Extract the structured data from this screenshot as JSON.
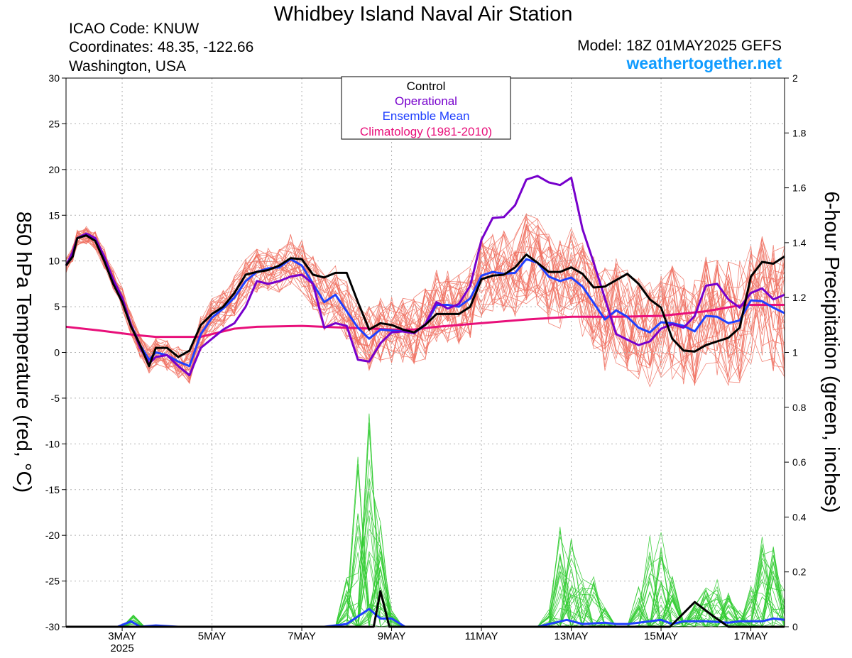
{
  "header": {
    "title": "Whidbey Island Naval Air Station",
    "icao": "ICAO Code: KNUW",
    "coords": "Coordinates: 48.35, -122.66",
    "location": "Washington, USA",
    "model": "Model: 18Z 01MAY2025 GEFS",
    "site": "weathertogether.net"
  },
  "colors": {
    "control": "#000000",
    "operational": "#7700cc",
    "mean": "#1f3fff",
    "climatology": "#e8107a",
    "members_temp": "#f07060",
    "members_precip": "#33cc33",
    "site": "#0f9bff"
  },
  "chart_data": {
    "type": "line",
    "title": "Whidbey Island Naval Air Station",
    "xlabel": "",
    "ylabel": "850 hPa Temperature (red, °C)",
    "y2label": "6-hour Precipitation (green, inches)",
    "ylim": [
      -30,
      30
    ],
    "y2lim": [
      0,
      2
    ],
    "xlim": [
      1.75,
      17.75
    ],
    "x_units": "day of May 2025",
    "yticks": [
      "30",
      "25",
      "20",
      "15",
      "10",
      "5",
      "0",
      "-5",
      "-10",
      "-15",
      "-20",
      "-25",
      "-30"
    ],
    "y2ticks": [
      "2",
      "1.8",
      "1.6",
      "1.4",
      "1.2",
      "1",
      "0.8",
      "0.6",
      "0.4",
      "0.2",
      "0"
    ],
    "xticks": [
      {
        "x": 3,
        "label": "3MAY"
      },
      {
        "x": 5,
        "label": "5MAY"
      },
      {
        "x": 7,
        "label": "7MAY"
      },
      {
        "x": 9,
        "label": "9MAY"
      },
      {
        "x": 11,
        "label": "11MAY"
      },
      {
        "x": 13,
        "label": "13MAY"
      },
      {
        "x": 15,
        "label": "15MAY"
      },
      {
        "x": 17,
        "label": "17MAY"
      }
    ],
    "year_label": "2025",
    "grid": true,
    "legend": {
      "placement": "top-center",
      "entries": [
        "Control",
        "Operational",
        "Ensemble Mean",
        "Climatology (1981-2010)"
      ]
    },
    "temperature": {
      "control": [
        [
          1.75,
          9.5
        ],
        [
          1.9,
          10.5
        ],
        [
          2.0,
          12.5
        ],
        [
          2.2,
          12.8
        ],
        [
          2.4,
          12.2
        ],
        [
          2.6,
          10.0
        ],
        [
          2.8,
          7.5
        ],
        [
          3.0,
          5.5
        ],
        [
          3.2,
          2.8
        ],
        [
          3.4,
          0.8
        ],
        [
          3.6,
          -1.5
        ],
        [
          3.75,
          0.5
        ],
        [
          4.0,
          0.5
        ],
        [
          4.25,
          -0.5
        ],
        [
          4.5,
          0.2
        ],
        [
          4.75,
          3.0
        ],
        [
          5.0,
          4.2
        ],
        [
          5.25,
          5.0
        ],
        [
          5.5,
          6.5
        ],
        [
          5.75,
          8.5
        ],
        [
          6.0,
          8.8
        ],
        [
          6.25,
          9.0
        ],
        [
          6.5,
          9.5
        ],
        [
          6.75,
          10.3
        ],
        [
          7.0,
          10.2
        ],
        [
          7.25,
          8.5
        ],
        [
          7.5,
          8.2
        ],
        [
          7.75,
          8.7
        ],
        [
          8.0,
          8.7
        ],
        [
          8.25,
          5.5
        ],
        [
          8.5,
          2.5
        ],
        [
          8.75,
          3.2
        ],
        [
          9.0,
          3.0
        ],
        [
          9.25,
          2.5
        ],
        [
          9.5,
          2.2
        ],
        [
          9.75,
          3.0
        ],
        [
          10.0,
          4.2
        ],
        [
          10.25,
          4.2
        ],
        [
          10.5,
          4.2
        ],
        [
          10.75,
          5.0
        ],
        [
          11.0,
          8.0
        ],
        [
          11.25,
          8.4
        ],
        [
          11.5,
          8.5
        ],
        [
          11.75,
          9.3
        ],
        [
          12.0,
          10.7
        ],
        [
          12.25,
          9.8
        ],
        [
          12.5,
          8.8
        ],
        [
          12.75,
          8.8
        ],
        [
          13.0,
          9.3
        ],
        [
          13.25,
          8.6
        ],
        [
          13.5,
          7.1
        ],
        [
          13.75,
          7.2
        ],
        [
          14.0,
          7.9
        ],
        [
          14.25,
          8.6
        ],
        [
          14.5,
          7.5
        ],
        [
          14.75,
          5.8
        ],
        [
          15.0,
          4.9
        ],
        [
          15.25,
          1.5
        ],
        [
          15.5,
          0.2
        ],
        [
          15.75,
          0.1
        ],
        [
          16.0,
          0.8
        ],
        [
          16.25,
          1.2
        ],
        [
          16.5,
          1.6
        ],
        [
          16.75,
          2.7
        ],
        [
          17.0,
          8.3
        ],
        [
          17.25,
          9.9
        ],
        [
          17.5,
          9.7
        ],
        [
          17.75,
          10.5
        ]
      ],
      "operational": [
        [
          1.75,
          9.5
        ],
        [
          1.9,
          11.0
        ],
        [
          2.0,
          12.5
        ],
        [
          2.2,
          13.0
        ],
        [
          2.4,
          12.5
        ],
        [
          2.6,
          10.5
        ],
        [
          2.8,
          8.0
        ],
        [
          3.0,
          6.0
        ],
        [
          3.2,
          3.0
        ],
        [
          3.4,
          0.5
        ],
        [
          3.6,
          -1.2
        ],
        [
          3.75,
          -0.5
        ],
        [
          4.0,
          -0.3
        ],
        [
          4.25,
          -1.5
        ],
        [
          4.5,
          -2.5
        ],
        [
          4.75,
          0.5
        ],
        [
          5.0,
          1.5
        ],
        [
          5.25,
          2.5
        ],
        [
          5.5,
          3.2
        ],
        [
          5.75,
          5.0
        ],
        [
          6.0,
          7.8
        ],
        [
          6.25,
          7.5
        ],
        [
          6.5,
          7.8
        ],
        [
          6.75,
          8.3
        ],
        [
          7.0,
          8.5
        ],
        [
          7.25,
          7.5
        ],
        [
          7.5,
          2.7
        ],
        [
          7.75,
          3.2
        ],
        [
          8.0,
          2.9
        ],
        [
          8.25,
          -0.8
        ],
        [
          8.5,
          -1.0
        ],
        [
          8.75,
          1.0
        ],
        [
          9.0,
          2.2
        ],
        [
          9.25,
          2.3
        ],
        [
          9.5,
          2.1
        ],
        [
          9.75,
          3.1
        ],
        [
          10.0,
          5.5
        ],
        [
          10.25,
          4.8
        ],
        [
          10.5,
          5.3
        ],
        [
          10.75,
          7.3
        ],
        [
          11.0,
          12.3
        ],
        [
          11.25,
          14.7
        ],
        [
          11.5,
          14.8
        ],
        [
          11.75,
          16.1
        ],
        [
          12.0,
          18.9
        ],
        [
          12.25,
          19.3
        ],
        [
          12.5,
          18.6
        ],
        [
          12.75,
          18.3
        ],
        [
          13.0,
          19.1
        ],
        [
          13.25,
          13.5
        ],
        [
          13.5,
          9.8
        ],
        [
          13.75,
          5.9
        ],
        [
          14.0,
          2.0
        ],
        [
          14.25,
          1.4
        ],
        [
          14.5,
          0.8
        ],
        [
          14.75,
          1.2
        ],
        [
          15.0,
          2.6
        ],
        [
          15.25,
          3.1
        ],
        [
          15.5,
          2.7
        ],
        [
          15.75,
          4.0
        ],
        [
          16.0,
          7.3
        ],
        [
          16.25,
          7.5
        ],
        [
          16.5,
          5.8
        ],
        [
          16.75,
          4.9
        ],
        [
          17.0,
          6.5
        ],
        [
          17.25,
          7.0
        ],
        [
          17.5,
          5.8
        ],
        [
          17.75,
          6.3
        ]
      ],
      "mean": [
        [
          1.75,
          9.5
        ],
        [
          1.9,
          10.8
        ],
        [
          2.0,
          12.5
        ],
        [
          2.2,
          12.8
        ],
        [
          2.4,
          12.3
        ],
        [
          2.6,
          10.3
        ],
        [
          2.8,
          8.0
        ],
        [
          3.0,
          5.8
        ],
        [
          3.2,
          3.0
        ],
        [
          3.4,
          0.8
        ],
        [
          3.6,
          -0.8
        ],
        [
          3.75,
          0.0
        ],
        [
          4.0,
          -0.3
        ],
        [
          4.25,
          -1.0
        ],
        [
          4.5,
          -1.5
        ],
        [
          4.75,
          2.0
        ],
        [
          5.0,
          3.8
        ],
        [
          5.25,
          4.8
        ],
        [
          5.5,
          6.0
        ],
        [
          5.75,
          7.8
        ],
        [
          6.0,
          8.8
        ],
        [
          6.25,
          9.2
        ],
        [
          6.5,
          9.3
        ],
        [
          6.75,
          10.2
        ],
        [
          7.0,
          9.5
        ],
        [
          7.25,
          7.5
        ],
        [
          7.5,
          5.5
        ],
        [
          7.75,
          6.3
        ],
        [
          8.0,
          4.5
        ],
        [
          8.25,
          2.7
        ],
        [
          8.5,
          1.5
        ],
        [
          8.75,
          2.5
        ],
        [
          9.0,
          2.4
        ],
        [
          9.25,
          2.3
        ],
        [
          9.5,
          2.1
        ],
        [
          9.75,
          3.0
        ],
        [
          10.0,
          5.2
        ],
        [
          10.25,
          5.2
        ],
        [
          10.5,
          5.0
        ],
        [
          10.75,
          5.9
        ],
        [
          11.0,
          8.4
        ],
        [
          11.25,
          8.8
        ],
        [
          11.5,
          8.6
        ],
        [
          11.75,
          8.7
        ],
        [
          12.0,
          10.2
        ],
        [
          12.25,
          9.8
        ],
        [
          12.5,
          8.3
        ],
        [
          12.75,
          7.8
        ],
        [
          13.0,
          8.2
        ],
        [
          13.25,
          7.2
        ],
        [
          13.5,
          5.4
        ],
        [
          13.75,
          3.6
        ],
        [
          14.0,
          4.6
        ],
        [
          14.25,
          3.9
        ],
        [
          14.5,
          2.7
        ],
        [
          14.75,
          2.2
        ],
        [
          15.0,
          3.3
        ],
        [
          15.25,
          3.2
        ],
        [
          15.5,
          2.9
        ],
        [
          15.75,
          2.3
        ],
        [
          16.0,
          4.0
        ],
        [
          16.25,
          3.9
        ],
        [
          16.5,
          3.2
        ],
        [
          16.75,
          3.5
        ],
        [
          17.0,
          5.7
        ],
        [
          17.25,
          5.6
        ],
        [
          17.5,
          4.9
        ],
        [
          17.75,
          4.3
        ]
      ],
      "climatology": [
        [
          1.75,
          2.8
        ],
        [
          2.5,
          2.4
        ],
        [
          3.3,
          1.9
        ],
        [
          3.75,
          1.7
        ],
        [
          4.5,
          1.7
        ],
        [
          4.75,
          1.7
        ],
        [
          5.0,
          2.0
        ],
        [
          5.5,
          2.6
        ],
        [
          6.0,
          2.8
        ],
        [
          7.0,
          2.9
        ],
        [
          8.0,
          2.7
        ],
        [
          8.6,
          2.6
        ],
        [
          9.0,
          2.5
        ],
        [
          9.5,
          2.5
        ],
        [
          10.0,
          2.8
        ],
        [
          11.0,
          3.2
        ],
        [
          12.0,
          3.6
        ],
        [
          13.0,
          3.9
        ],
        [
          14.0,
          3.9
        ],
        [
          15.0,
          4.0
        ],
        [
          16.0,
          4.5
        ],
        [
          16.7,
          5.1
        ],
        [
          17.0,
          5.2
        ],
        [
          17.75,
          5.2
        ]
      ]
    },
    "precipitation": {
      "control": [
        [
          1.75,
          0
        ],
        [
          8.6,
          0
        ],
        [
          8.75,
          0.13
        ],
        [
          8.95,
          0
        ],
        [
          15.2,
          0
        ],
        [
          15.75,
          0.09
        ],
        [
          16.15,
          0.04
        ],
        [
          16.5,
          0
        ],
        [
          17.75,
          0
        ]
      ],
      "mean": [
        [
          1.75,
          0
        ],
        [
          2.9,
          0
        ],
        [
          3.2,
          0.02
        ],
        [
          3.4,
          0
        ],
        [
          3.75,
          0.005
        ],
        [
          4.25,
          0
        ],
        [
          7.5,
          0
        ],
        [
          8.0,
          0.01
        ],
        [
          8.5,
          0.065
        ],
        [
          8.75,
          0.03
        ],
        [
          9.0,
          0.03
        ],
        [
          9.3,
          0
        ],
        [
          11.75,
          0
        ],
        [
          12.25,
          0
        ],
        [
          12.9,
          0.025
        ],
        [
          13.25,
          0.01
        ],
        [
          13.75,
          0.015
        ],
        [
          14.0,
          0.01
        ],
        [
          14.25,
          0.01
        ],
        [
          14.5,
          0.015
        ],
        [
          14.75,
          0.02
        ],
        [
          15.0,
          0.025
        ],
        [
          15.25,
          0.01
        ],
        [
          15.5,
          0.02
        ],
        [
          16.0,
          0.02
        ],
        [
          16.5,
          0.015
        ],
        [
          16.75,
          0.02
        ],
        [
          17.0,
          0.02
        ],
        [
          17.25,
          0.02
        ],
        [
          17.5,
          0.03
        ],
        [
          17.75,
          0.025
        ]
      ]
    }
  }
}
